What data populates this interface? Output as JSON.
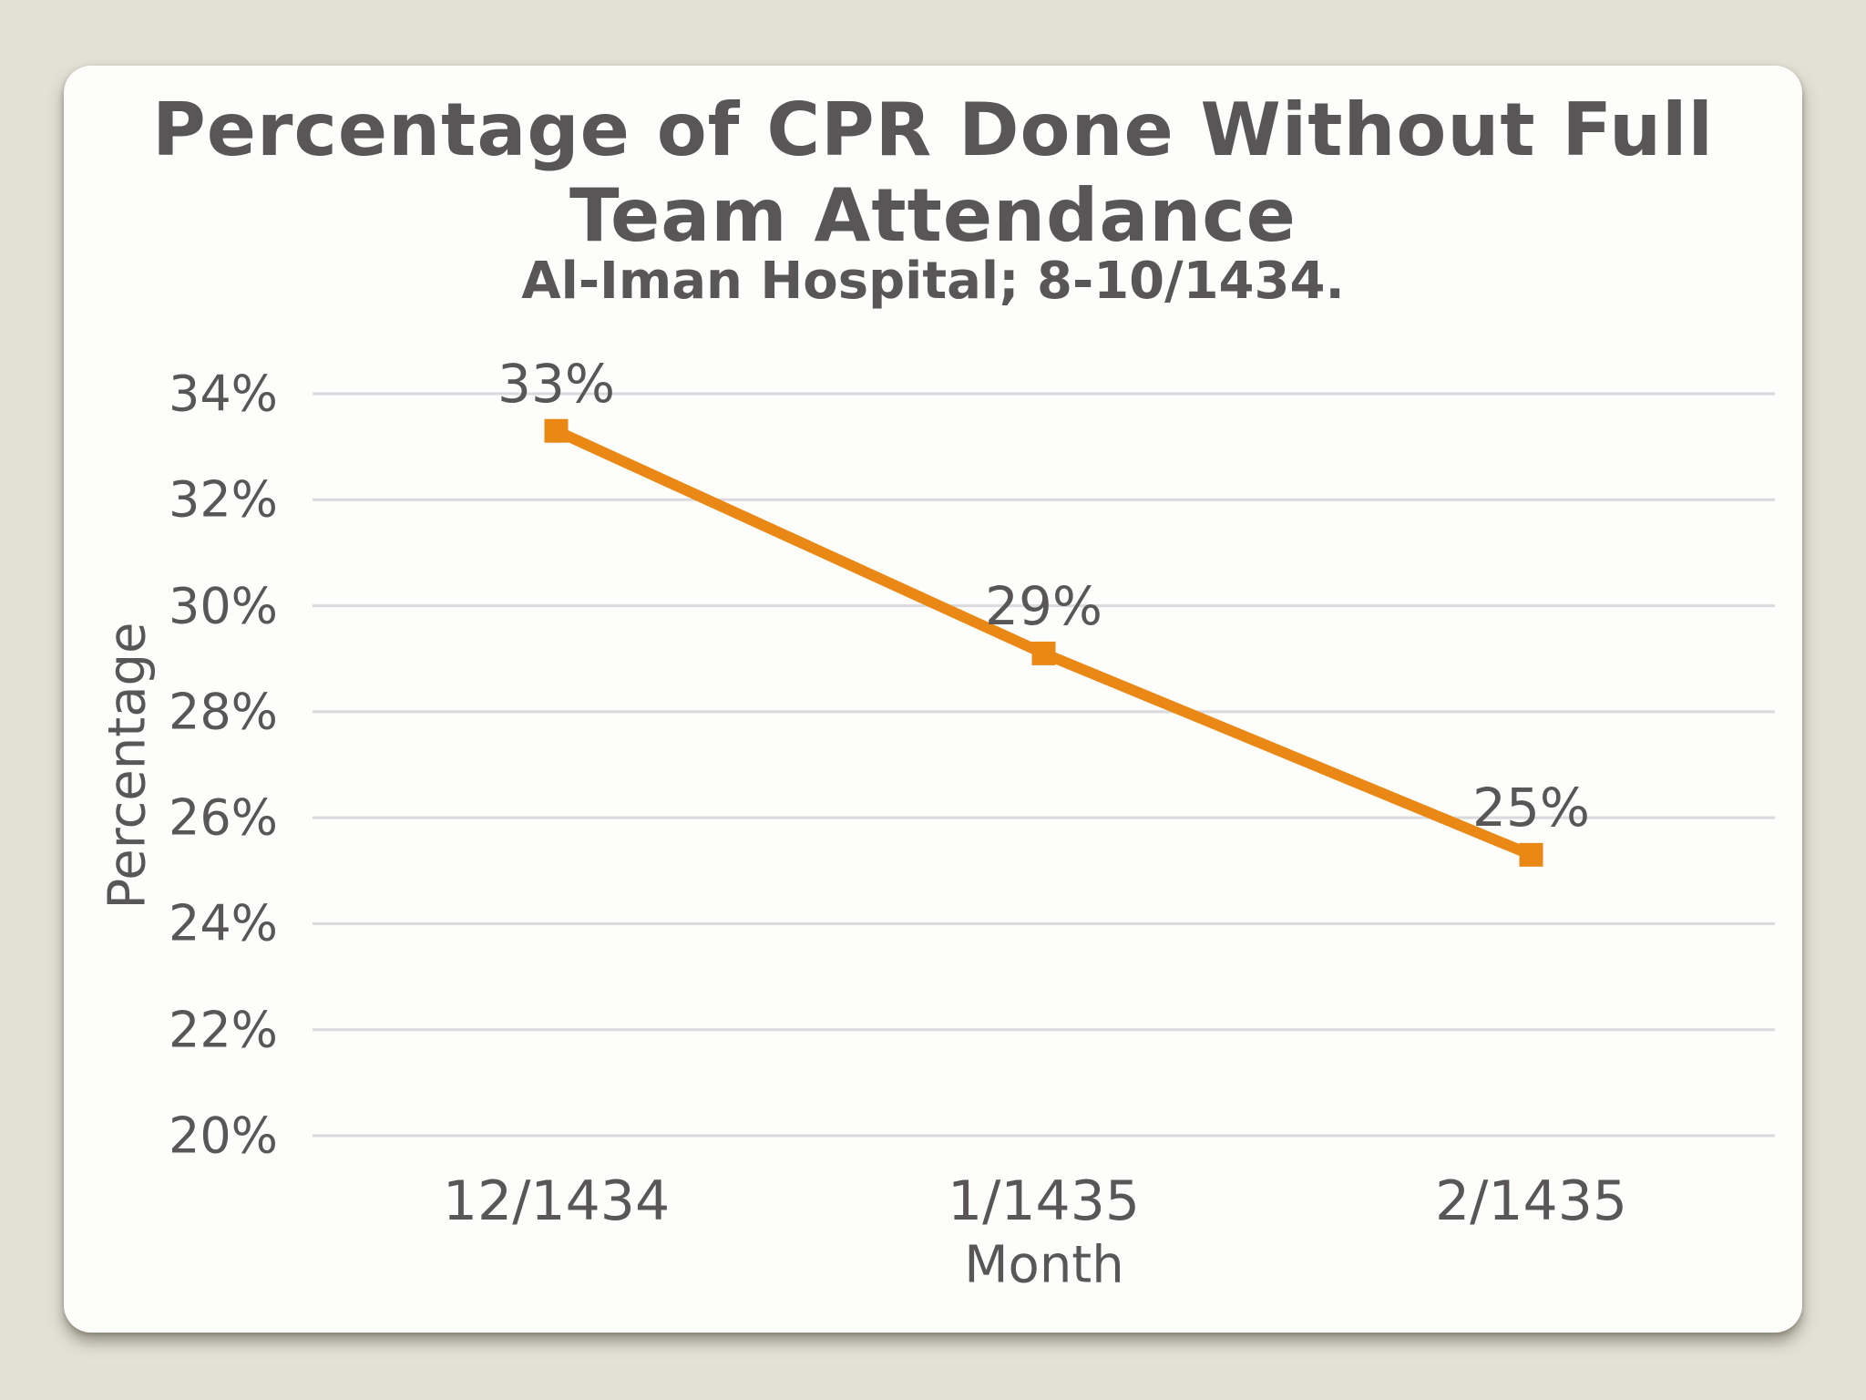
{
  "colors": {
    "background": "#E3E0D5",
    "card": "#FDFDFC",
    "text": "#595657",
    "grid": "#D9D9DE",
    "line": "#EA8816"
  },
  "chart_data": {
    "type": "line",
    "title": "Percentage of CPR Done Without Full Team Attendance",
    "title_lines": [
      "Percentage of CPR Done Without Full",
      "Team Attendance"
    ],
    "subtitle": "Al-Iman Hospital; 8-10/1434.",
    "xlabel": "Month",
    "ylabel": "Percentage",
    "categories": [
      "12/1434",
      "1/1435",
      "2/1435"
    ],
    "values": [
      33.3,
      29.1,
      25.3
    ],
    "point_labels": [
      "33%",
      "29%",
      "25%"
    ],
    "y_min": 20,
    "y_max": 34,
    "y_step": 2,
    "y_tick_labels": [
      "20%",
      "22%",
      "24%",
      "26%",
      "28%",
      "30%",
      "32%",
      "34%"
    ],
    "ylim": [
      20,
      34
    ],
    "grid": "horizontal",
    "legend": false,
    "marker": "square",
    "line_width": 12,
    "marker_size": 26
  }
}
